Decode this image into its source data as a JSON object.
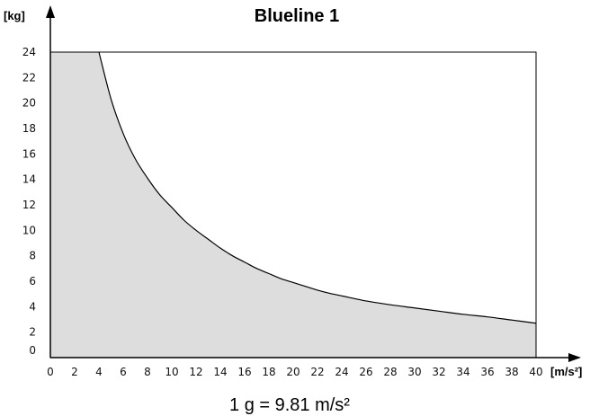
{
  "chart_data": {
    "type": "area",
    "title": "Blueline 1",
    "ylabel": "[kg]",
    "xlabel": "[m/s²]",
    "note": "1 g = 9.81 m/s²",
    "xlim": [
      0,
      40
    ],
    "ylim": [
      0,
      24
    ],
    "x_ticks": [
      0,
      2,
      4,
      6,
      8,
      10,
      12,
      14,
      16,
      18,
      20,
      22,
      24,
      26,
      28,
      30,
      32,
      34,
      36,
      38,
      40
    ],
    "y_ticks": [
      0,
      2,
      4,
      6,
      8,
      10,
      12,
      14,
      16,
      18,
      20,
      22,
      24
    ],
    "grid": false,
    "colors": {
      "fill": "#dddddd",
      "line": "#000000",
      "frame": "#000000"
    },
    "series": [
      {
        "x": [
          0,
          4,
          5,
          6,
          7,
          8,
          9,
          10,
          11,
          12,
          13,
          14,
          15,
          16,
          17,
          18,
          19,
          20,
          21,
          22,
          23,
          24,
          26,
          28,
          30,
          32,
          34,
          36,
          38,
          40
        ],
        "values": [
          24,
          24,
          20.3,
          17.6,
          15.6,
          14.1,
          12.8,
          11.8,
          10.8,
          10.0,
          9.3,
          8.6,
          8.0,
          7.5,
          7.0,
          6.6,
          6.2,
          5.9,
          5.6,
          5.3,
          5.05,
          4.85,
          4.45,
          4.15,
          3.9,
          3.65,
          3.4,
          3.2,
          2.95,
          2.7
        ]
      }
    ]
  }
}
